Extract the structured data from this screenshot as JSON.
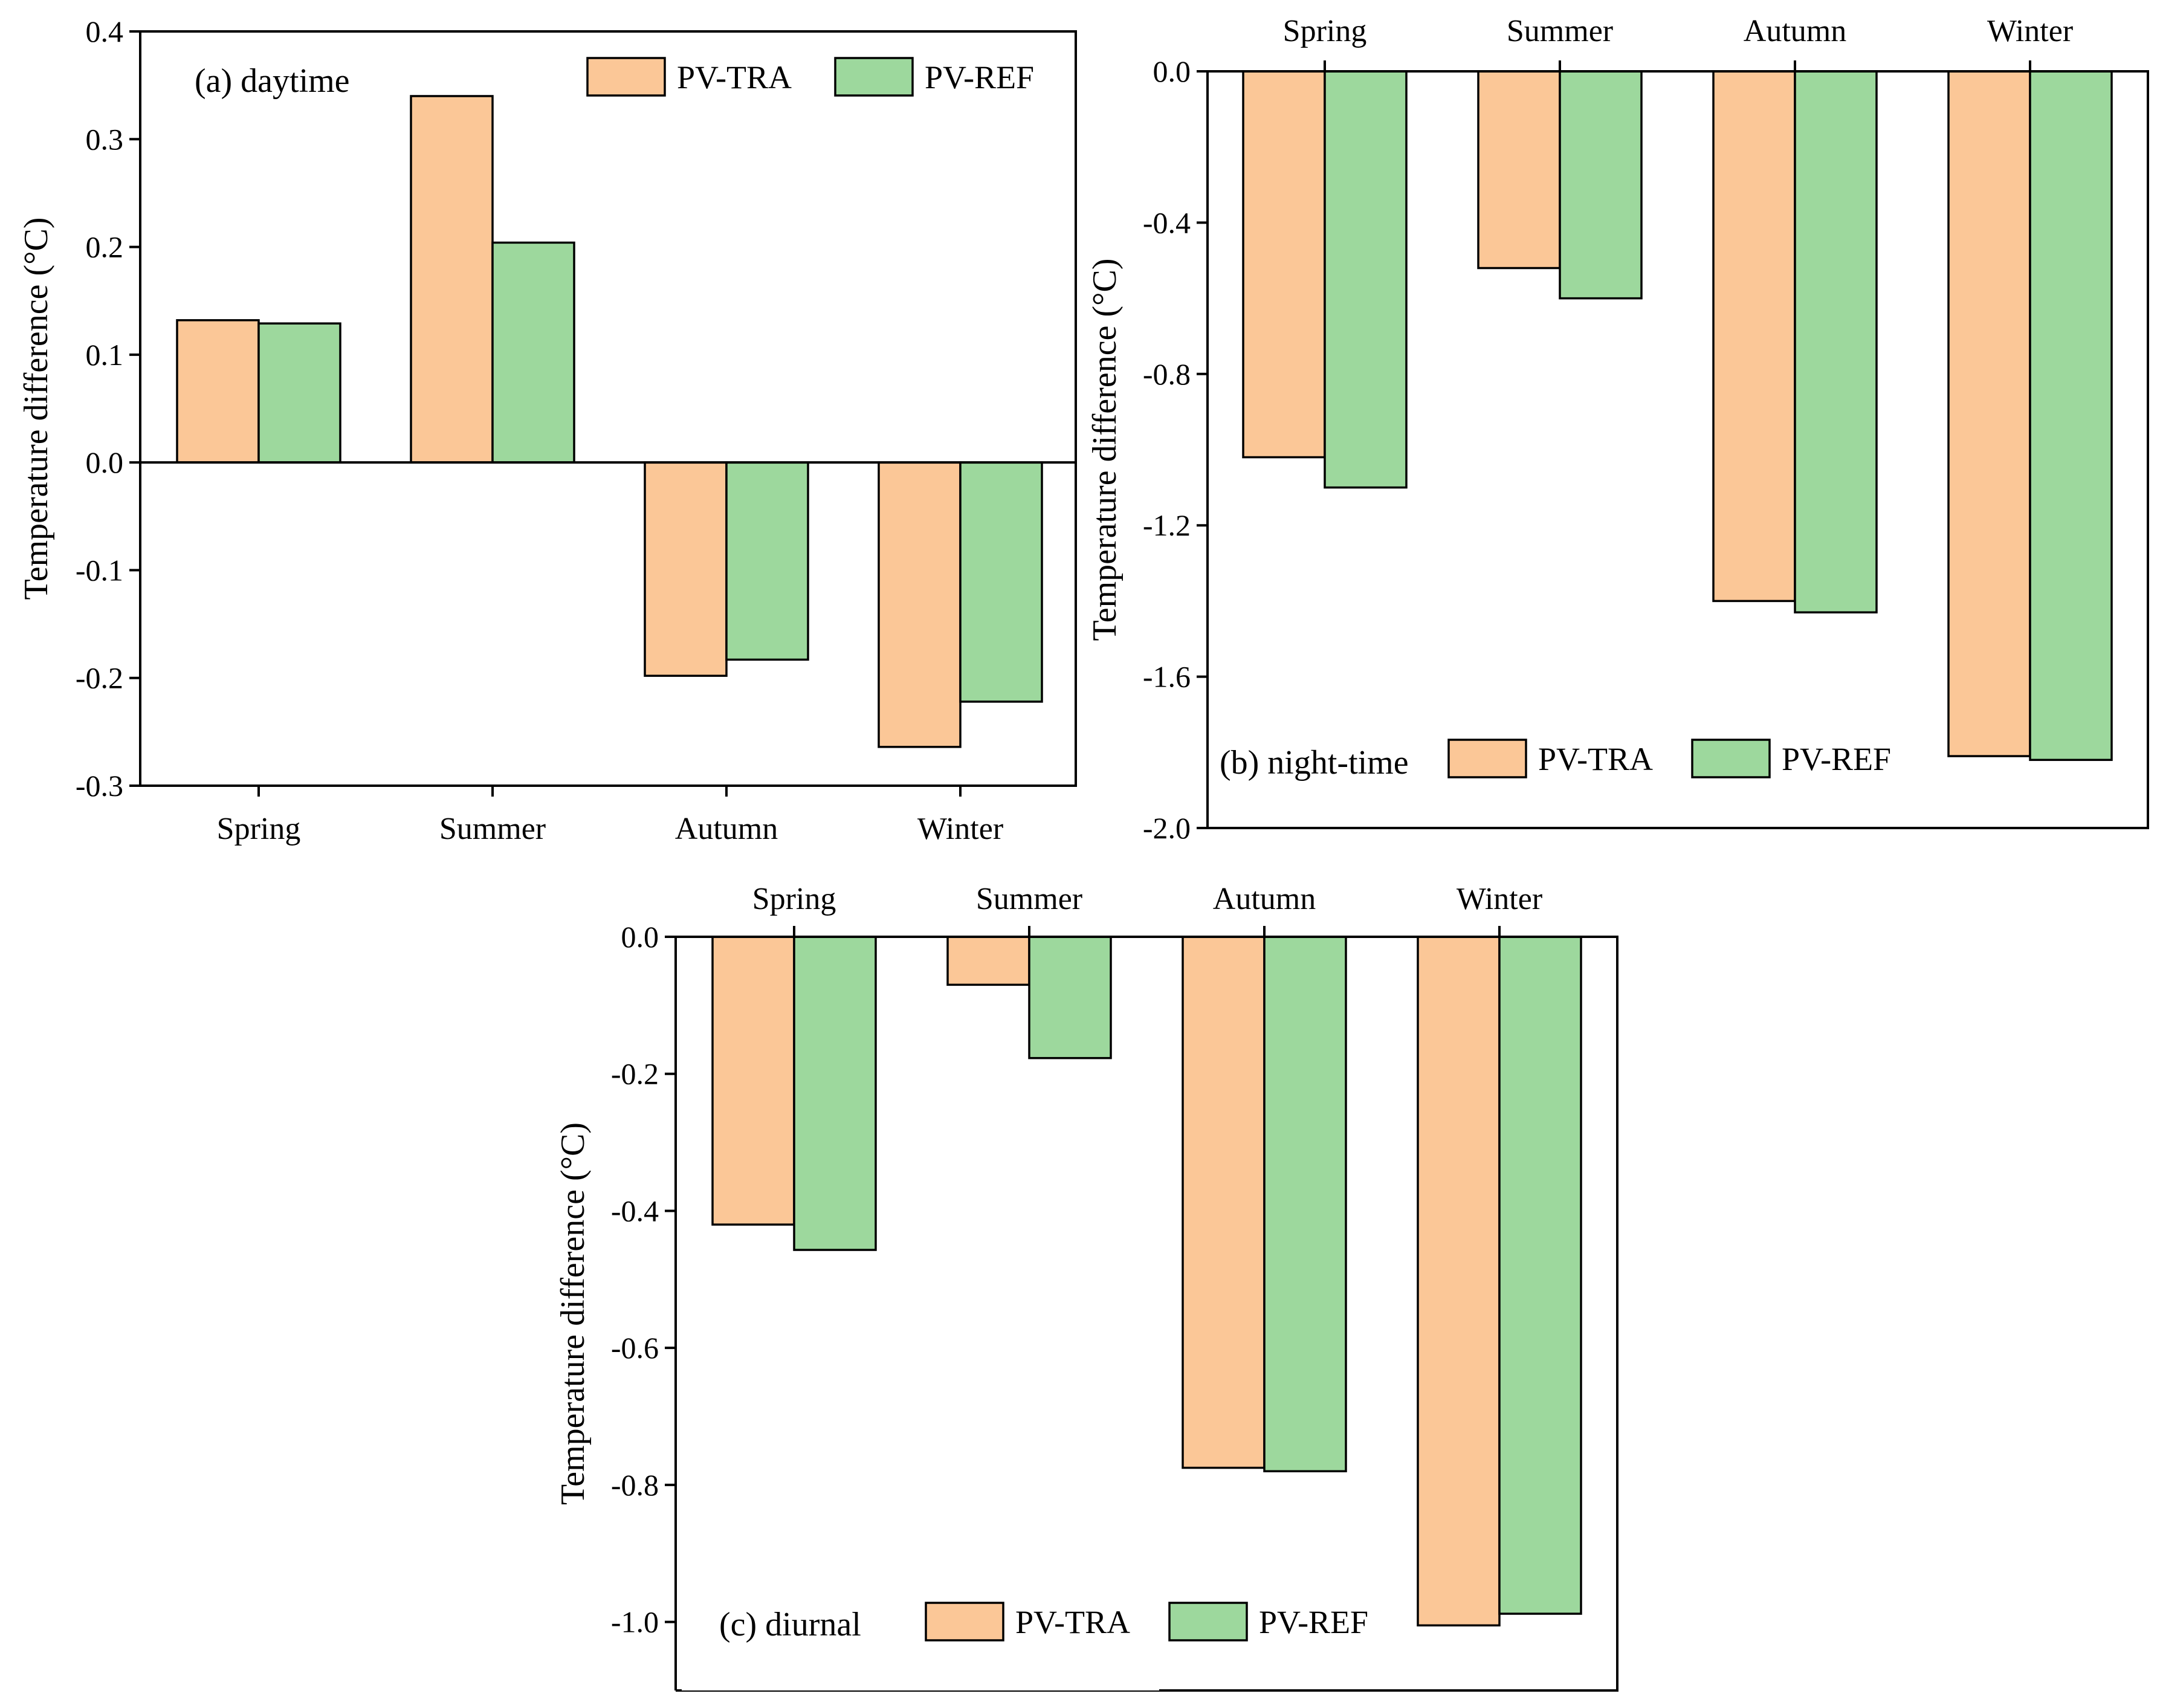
{
  "colors": {
    "PV-TRA": "#fbc797",
    "PV-REF": "#9dd89d"
  },
  "chart_data": [
    {
      "id": "a",
      "type": "bar",
      "panel_label": "(a) daytime",
      "title": "",
      "xlabel": "",
      "ylabel": "Temperature difference (°C)",
      "categories": [
        "Spring",
        "Summer",
        "Autumn",
        "Winter"
      ],
      "series": [
        {
          "name": "PV-TRA",
          "values": [
            0.132,
            0.34,
            -0.198,
            -0.264
          ]
        },
        {
          "name": "PV-REF",
          "values": [
            0.129,
            0.204,
            -0.183,
            -0.222
          ]
        }
      ],
      "ylim": [
        -0.3,
        0.4
      ],
      "yticks": [
        0.4,
        0.3,
        0.2,
        0.1,
        0.0,
        -0.1,
        -0.2,
        -0.3
      ],
      "ytick_labels": [
        "0.4",
        "0.3",
        "0.2",
        "0.1",
        "0.0",
        "-0.1",
        "-0.2",
        "-0.3"
      ],
      "category_axis": "bottom",
      "legend_position": "top-right",
      "grid": false
    },
    {
      "id": "b",
      "type": "bar",
      "panel_label": "(b) night-time",
      "title": "",
      "xlabel": "",
      "ylabel": "Temperature difference (°C)",
      "categories": [
        "Spring",
        "Summer",
        "Autumn",
        "Winter"
      ],
      "series": [
        {
          "name": "PV-TRA",
          "values": [
            -1.02,
            -0.52,
            -1.4,
            -1.81
          ]
        },
        {
          "name": "PV-REF",
          "values": [
            -1.1,
            -0.6,
            -1.43,
            -1.82
          ]
        }
      ],
      "ylim": [
        -2.0,
        0.0
      ],
      "yticks": [
        0.0,
        -0.4,
        -0.8,
        -1.2,
        -1.6,
        -2.0
      ],
      "ytick_labels": [
        "0.0",
        "-0.4",
        "-0.8",
        "-1.2",
        "-1.6",
        "-2.0"
      ],
      "category_axis": "top",
      "legend_position": "bottom-left",
      "grid": false
    },
    {
      "id": "c",
      "type": "bar",
      "panel_label": "(c) diurnal",
      "title": "",
      "xlabel": "",
      "ylabel": "Temperature difference (°C)",
      "categories": [
        "Spring",
        "Summer",
        "Autumn",
        "Winter"
      ],
      "series": [
        {
          "name": "PV-TRA",
          "values": [
            -0.42,
            -0.07,
            -0.775,
            -1.005
          ]
        },
        {
          "name": "PV-REF",
          "values": [
            -0.457,
            -0.177,
            -0.78,
            -0.988
          ]
        }
      ],
      "ylim": [
        -1.1,
        0.0
      ],
      "yticks": [
        0.0,
        -0.2,
        -0.4,
        -0.6,
        -0.8,
        -1.0
      ],
      "ytick_labels": [
        "0.0",
        "-0.2",
        "-0.4",
        "-0.6",
        "-0.8",
        "-1.0"
      ],
      "category_axis": "top",
      "legend_position": "bottom-left",
      "grid": false
    }
  ]
}
